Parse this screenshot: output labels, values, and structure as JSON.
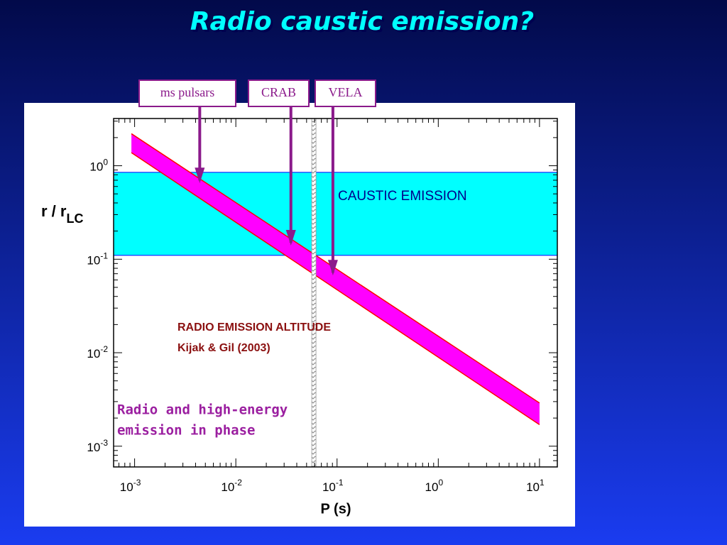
{
  "chart_data": {
    "type": "band",
    "title": "Radio caustic emission?",
    "xlabel": "P (s)",
    "ylabel": {
      "main": "r / r",
      "sub": "LC"
    },
    "log_x": true,
    "log_y": true,
    "xlim": [
      0.00062,
      15
    ],
    "ylim": [
      0.0006,
      3.2
    ],
    "xticks": [
      {
        "value": 0.001,
        "label": [
          "10",
          "-3"
        ]
      },
      {
        "value": 0.01,
        "label": [
          "10",
          "-2"
        ]
      },
      {
        "value": 0.1,
        "label": [
          "10",
          "-1"
        ]
      },
      {
        "value": 1,
        "label": [
          "10",
          "0"
        ]
      },
      {
        "value": 10,
        "label": [
          "10",
          "1"
        ]
      }
    ],
    "yticks": [
      {
        "value": 1,
        "label": [
          "10",
          "0"
        ]
      },
      {
        "value": 0.1,
        "label": [
          "10",
          "-1"
        ]
      },
      {
        "value": 0.01,
        "label": [
          "10",
          "-2"
        ]
      },
      {
        "value": 0.001,
        "label": [
          "10",
          "-3"
        ]
      }
    ],
    "minor_ticks": true,
    "caustic_band": {
      "label": "CAUSTIC EMISSION",
      "range": [
        0.11,
        0.85
      ],
      "color": "#00ffff"
    },
    "emission_band": {
      "x": [
        0.00093,
        10
      ],
      "upper": [
        2.2,
        0.0029
      ],
      "lower": [
        1.38,
        0.0017
      ],
      "color": "#ff00ff",
      "edge_color": "#ff0000"
    },
    "phase_line": {
      "x": 0.059
    },
    "arrows": [
      {
        "label": "ms pulsars",
        "x": 0.0044,
        "y": 0.65
      },
      {
        "label": "CRAB",
        "x": 0.035,
        "y": 0.14
      },
      {
        "label": "VELA",
        "x": 0.091,
        "y": 0.067
      }
    ],
    "arrow_color": "#8b1a8b",
    "annotations": {
      "altitude": [
        "RADIO EMISSION ALTITUDE",
        "Kijak & Gil (2003)"
      ],
      "phase": [
        "Radio and high-energy",
        "emission in phase"
      ]
    }
  }
}
